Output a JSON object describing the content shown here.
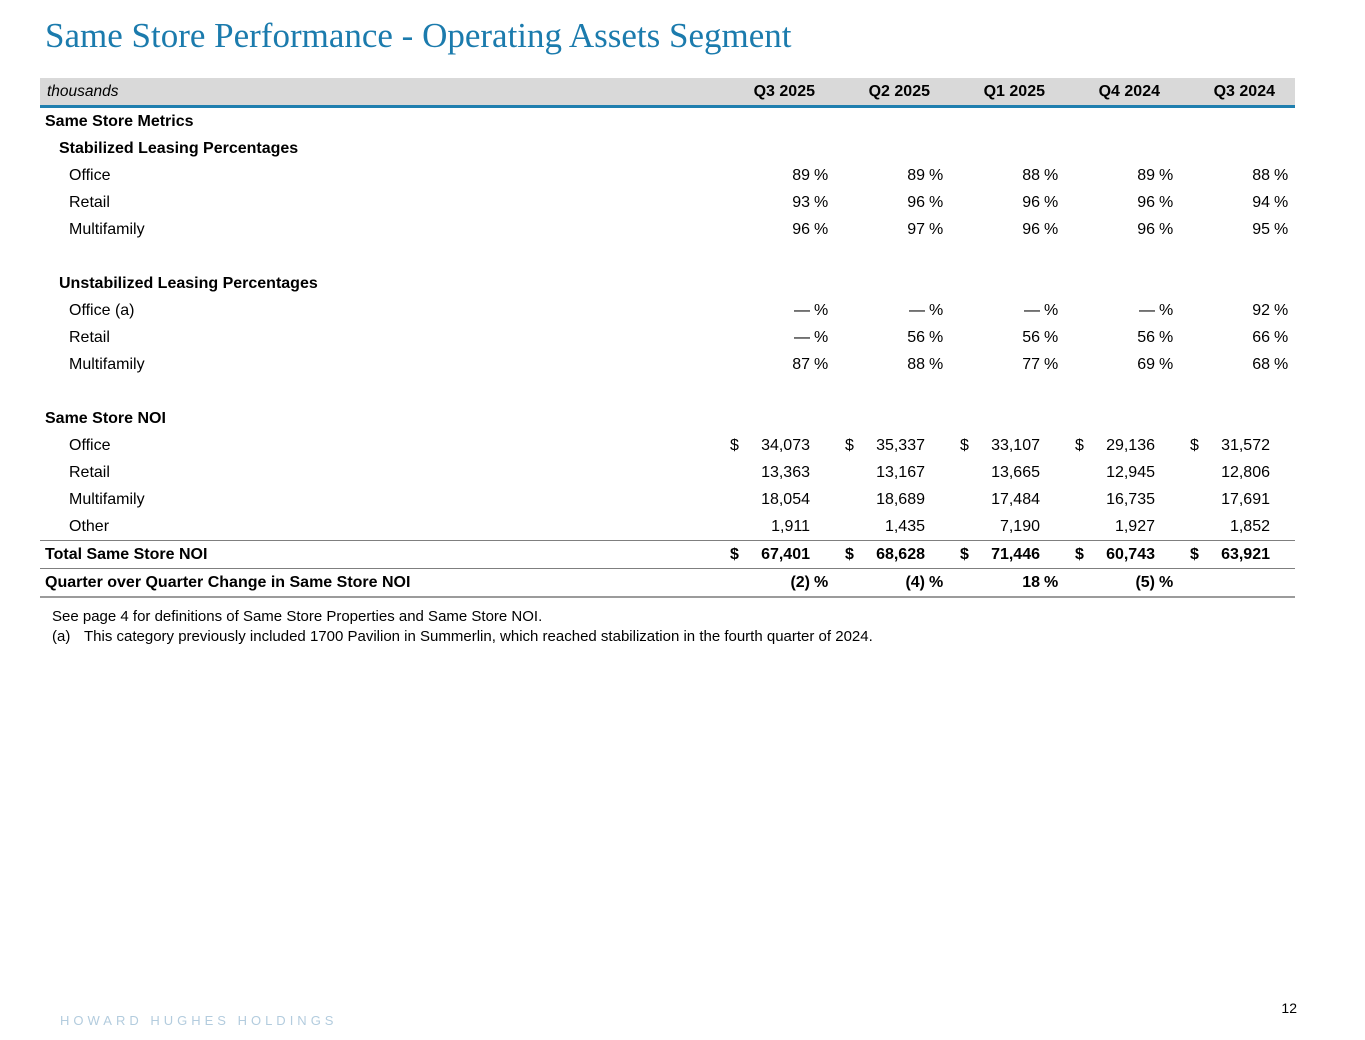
{
  "slide": {
    "title": "Same Store Performance - Operating Assets Segment",
    "page_number": "12",
    "footer_brand": "HOWARD HUGHES HOLDINGS"
  },
  "colors": {
    "title_blue": "#1B7BAD",
    "header_rule_blue": "#1F7FAF",
    "header_background": "#D9D9D9",
    "row_rule_gray": "#7F7F7F",
    "brand_blue": "#B3CCDE"
  },
  "table": {
    "unit_label": "thousands",
    "columns": [
      "Q3 2025",
      "Q2 2025",
      "Q1 2025",
      "Q4 2024",
      "Q3 2024"
    ],
    "rows": [
      {
        "label": "Same Store Metrics",
        "style": "section"
      },
      {
        "label": "Stabilized Leasing Percentages",
        "style": "subsection"
      },
      {
        "label": "Office",
        "style": "item",
        "cells": [
          {
            "v": "89",
            "s": "%"
          },
          {
            "v": "89",
            "s": "%"
          },
          {
            "v": "88",
            "s": "%"
          },
          {
            "v": "89",
            "s": "%"
          },
          {
            "v": "88",
            "s": "%"
          }
        ]
      },
      {
        "label": "Retail",
        "style": "item",
        "cells": [
          {
            "v": "93",
            "s": "%"
          },
          {
            "v": "96",
            "s": "%"
          },
          {
            "v": "96",
            "s": "%"
          },
          {
            "v": "96",
            "s": "%"
          },
          {
            "v": "94",
            "s": "%"
          }
        ]
      },
      {
        "label": "Multifamily",
        "style": "item",
        "cells": [
          {
            "v": "96",
            "s": "%"
          },
          {
            "v": "97",
            "s": "%"
          },
          {
            "v": "96",
            "s": "%"
          },
          {
            "v": "96",
            "s": "%"
          },
          {
            "v": "95",
            "s": "%"
          }
        ]
      },
      {
        "label": "",
        "style": "spacer"
      },
      {
        "label": "Unstabilized Leasing Percentages",
        "style": "subsection"
      },
      {
        "label": "Office (a)",
        "style": "item",
        "cells": [
          {
            "v": "—",
            "s": "%"
          },
          {
            "v": "—",
            "s": "%"
          },
          {
            "v": "—",
            "s": "%"
          },
          {
            "v": "—",
            "s": "%"
          },
          {
            "v": "92",
            "s": "%"
          }
        ]
      },
      {
        "label": "Retail",
        "style": "item",
        "cells": [
          {
            "v": "—",
            "s": "%"
          },
          {
            "v": "56",
            "s": "%"
          },
          {
            "v": "56",
            "s": "%"
          },
          {
            "v": "56",
            "s": "%"
          },
          {
            "v": "66",
            "s": "%"
          }
        ]
      },
      {
        "label": "Multifamily",
        "style": "item",
        "cells": [
          {
            "v": "87",
            "s": "%"
          },
          {
            "v": "88",
            "s": "%"
          },
          {
            "v": "77",
            "s": "%"
          },
          {
            "v": "69",
            "s": "%"
          },
          {
            "v": "68",
            "s": "%"
          }
        ]
      },
      {
        "label": "",
        "style": "spacer"
      },
      {
        "label": "Same Store NOI",
        "style": "section"
      },
      {
        "label": "Office",
        "style": "item",
        "cells": [
          {
            "c": "$",
            "v": "34,073"
          },
          {
            "c": "$",
            "v": "35,337"
          },
          {
            "c": "$",
            "v": "33,107"
          },
          {
            "c": "$",
            "v": "29,136"
          },
          {
            "c": "$",
            "v": "31,572"
          }
        ]
      },
      {
        "label": "Retail",
        "style": "item",
        "cells": [
          {
            "v": "13,363"
          },
          {
            "v": "13,167"
          },
          {
            "v": "13,665"
          },
          {
            "v": "12,945"
          },
          {
            "v": "12,806"
          }
        ]
      },
      {
        "label": "Multifamily",
        "style": "item",
        "cells": [
          {
            "v": "18,054"
          },
          {
            "v": "18,689"
          },
          {
            "v": "17,484"
          },
          {
            "v": "16,735"
          },
          {
            "v": "17,691"
          }
        ]
      },
      {
        "label": "Other",
        "style": "item",
        "cells": [
          {
            "v": "1,911"
          },
          {
            "v": "1,435"
          },
          {
            "v": "7,190"
          },
          {
            "v": "1,927"
          },
          {
            "v": "1,852"
          }
        ]
      },
      {
        "label": "Total Same Store NOI",
        "style": "total",
        "cells": [
          {
            "c": "$",
            "v": "67,401"
          },
          {
            "c": "$",
            "v": "68,628"
          },
          {
            "c": "$",
            "v": "71,446"
          },
          {
            "c": "$",
            "v": "60,743"
          },
          {
            "c": "$",
            "v": "63,921"
          }
        ]
      },
      {
        "label": "Quarter over Quarter Change in Same Store NOI",
        "style": "change",
        "cells": [
          {
            "v": "(2)",
            "s": "%"
          },
          {
            "v": "(4)",
            "s": "%"
          },
          {
            "v": "18",
            "s": "%"
          },
          {
            "v": "(5)",
            "s": "%"
          },
          {}
        ]
      }
    ]
  },
  "footnotes": [
    {
      "marker": "",
      "text": "See page 4 for definitions of Same Store Properties and Same Store NOI."
    },
    {
      "marker": "(a)",
      "text": "This category previously included 1700 Pavilion in Summerlin, which reached stabilization in the fourth quarter of 2024."
    }
  ]
}
